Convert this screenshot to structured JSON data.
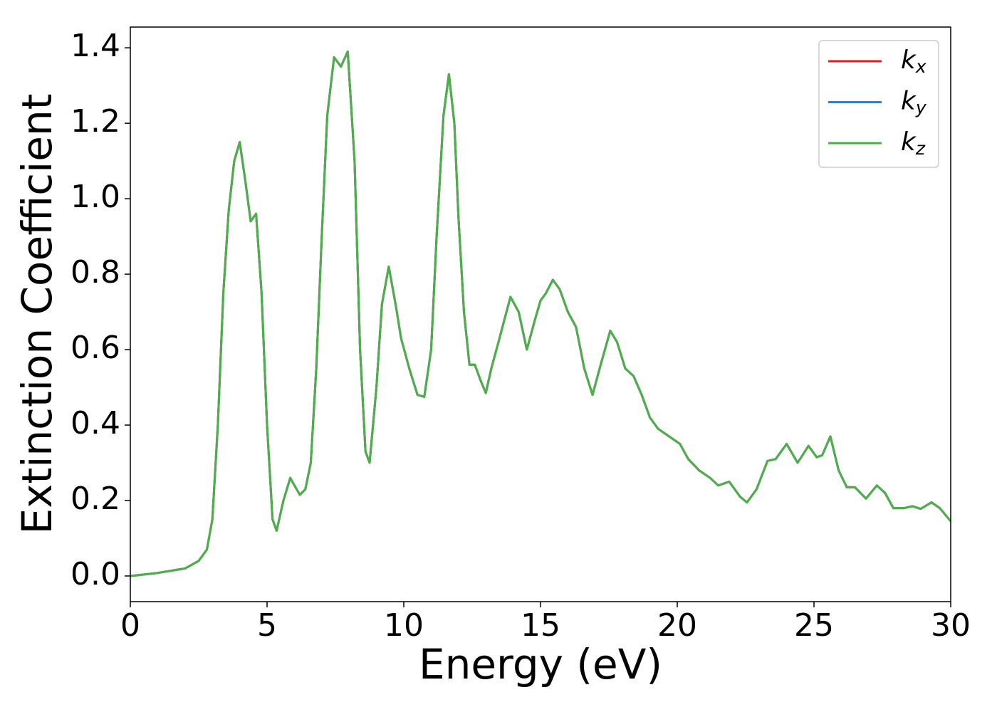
{
  "chart_data": {
    "type": "line",
    "xlabel": "Energy (eV)",
    "ylabel": "Extinction Coefficient",
    "x": [
      0,
      1,
      2,
      2.5,
      2.8,
      3.0,
      3.2,
      3.4,
      3.6,
      3.8,
      4.0,
      4.2,
      4.4,
      4.6,
      4.8,
      5.0,
      5.2,
      5.35,
      5.6,
      5.85,
      6.0,
      6.2,
      6.4,
      6.6,
      6.8,
      7.0,
      7.2,
      7.45,
      7.7,
      7.95,
      8.2,
      8.4,
      8.6,
      8.75,
      9.0,
      9.2,
      9.45,
      9.7,
      9.9,
      10.2,
      10.5,
      10.75,
      11.0,
      11.2,
      11.45,
      11.65,
      11.85,
      12.0,
      12.2,
      12.4,
      12.6,
      12.8,
      13.0,
      13.2,
      13.5,
      13.9,
      14.2,
      14.5,
      14.8,
      15.0,
      15.2,
      15.45,
      15.7,
      16.0,
      16.3,
      16.6,
      16.9,
      17.2,
      17.55,
      17.8,
      18.1,
      18.4,
      18.7,
      19.0,
      19.3,
      19.7,
      20.1,
      20.4,
      20.8,
      21.2,
      21.5,
      21.9,
      22.3,
      22.55,
      22.9,
      23.3,
      23.6,
      24.0,
      24.4,
      24.8,
      25.1,
      25.3,
      25.6,
      25.9,
      26.2,
      26.5,
      26.9,
      27.3,
      27.6,
      27.9,
      28.3,
      28.6,
      28.9,
      29.3,
      29.6,
      30
    ],
    "series": [
      {
        "name": "kx",
        "color": "#e41a1c",
        "values": [
          0,
          0.008,
          0.02,
          0.04,
          0.07,
          0.15,
          0.4,
          0.75,
          0.97,
          1.1,
          1.15,
          1.05,
          0.94,
          0.96,
          0.75,
          0.4,
          0.15,
          0.12,
          0.2,
          0.26,
          0.24,
          0.215,
          0.23,
          0.3,
          0.55,
          0.9,
          1.22,
          1.375,
          1.35,
          1.39,
          1.1,
          0.6,
          0.33,
          0.3,
          0.5,
          0.72,
          0.82,
          0.72,
          0.63,
          0.55,
          0.48,
          0.475,
          0.6,
          0.9,
          1.22,
          1.33,
          1.2,
          0.95,
          0.7,
          0.56,
          0.56,
          0.52,
          0.485,
          0.55,
          0.63,
          0.74,
          0.7,
          0.6,
          0.68,
          0.73,
          0.75,
          0.785,
          0.76,
          0.7,
          0.66,
          0.55,
          0.48,
          0.56,
          0.65,
          0.62,
          0.55,
          0.53,
          0.48,
          0.42,
          0.39,
          0.37,
          0.35,
          0.31,
          0.28,
          0.26,
          0.24,
          0.25,
          0.21,
          0.195,
          0.23,
          0.305,
          0.31,
          0.35,
          0.3,
          0.345,
          0.315,
          0.32,
          0.37,
          0.28,
          0.235,
          0.235,
          0.205,
          0.24,
          0.22,
          0.18,
          0.18,
          0.185,
          0.178,
          0.195,
          0.18,
          0.145
        ]
      },
      {
        "name": "ky",
        "color": "#377eb8",
        "values": [
          0,
          0.008,
          0.02,
          0.04,
          0.07,
          0.15,
          0.4,
          0.75,
          0.97,
          1.1,
          1.15,
          1.05,
          0.94,
          0.96,
          0.75,
          0.4,
          0.15,
          0.12,
          0.2,
          0.26,
          0.24,
          0.215,
          0.23,
          0.3,
          0.55,
          0.9,
          1.22,
          1.375,
          1.35,
          1.39,
          1.1,
          0.6,
          0.33,
          0.3,
          0.5,
          0.72,
          0.82,
          0.72,
          0.63,
          0.55,
          0.48,
          0.475,
          0.6,
          0.9,
          1.22,
          1.33,
          1.2,
          0.95,
          0.7,
          0.56,
          0.56,
          0.52,
          0.485,
          0.55,
          0.63,
          0.74,
          0.7,
          0.6,
          0.68,
          0.73,
          0.75,
          0.785,
          0.76,
          0.7,
          0.66,
          0.55,
          0.48,
          0.56,
          0.65,
          0.62,
          0.55,
          0.53,
          0.48,
          0.42,
          0.39,
          0.37,
          0.35,
          0.31,
          0.28,
          0.26,
          0.24,
          0.25,
          0.21,
          0.195,
          0.23,
          0.305,
          0.31,
          0.35,
          0.3,
          0.345,
          0.315,
          0.32,
          0.37,
          0.28,
          0.235,
          0.235,
          0.205,
          0.24,
          0.22,
          0.18,
          0.18,
          0.185,
          0.178,
          0.195,
          0.18,
          0.145
        ]
      },
      {
        "name": "kz",
        "color": "#4daf4a",
        "values": [
          0,
          0.008,
          0.02,
          0.04,
          0.07,
          0.15,
          0.4,
          0.75,
          0.97,
          1.1,
          1.15,
          1.05,
          0.94,
          0.96,
          0.75,
          0.4,
          0.15,
          0.12,
          0.2,
          0.26,
          0.24,
          0.215,
          0.23,
          0.3,
          0.55,
          0.9,
          1.22,
          1.375,
          1.35,
          1.39,
          1.1,
          0.6,
          0.33,
          0.3,
          0.5,
          0.72,
          0.82,
          0.72,
          0.63,
          0.55,
          0.48,
          0.475,
          0.6,
          0.9,
          1.22,
          1.33,
          1.2,
          0.95,
          0.7,
          0.56,
          0.56,
          0.52,
          0.485,
          0.55,
          0.63,
          0.74,
          0.7,
          0.6,
          0.68,
          0.73,
          0.75,
          0.785,
          0.76,
          0.7,
          0.66,
          0.55,
          0.48,
          0.56,
          0.65,
          0.62,
          0.55,
          0.53,
          0.48,
          0.42,
          0.39,
          0.37,
          0.35,
          0.31,
          0.28,
          0.26,
          0.24,
          0.25,
          0.21,
          0.195,
          0.23,
          0.305,
          0.31,
          0.35,
          0.3,
          0.345,
          0.315,
          0.32,
          0.37,
          0.28,
          0.235,
          0.235,
          0.205,
          0.24,
          0.22,
          0.18,
          0.18,
          0.185,
          0.178,
          0.195,
          0.18,
          0.145
        ]
      }
    ],
    "xlim": [
      0,
      30
    ],
    "xticks": [
      0,
      5,
      10,
      15,
      20,
      25,
      30
    ],
    "ylim": [
      -0.068,
      1.455
    ],
    "yticks": [
      {
        "value": 0,
        "label": "0.0"
      },
      0.2,
      0.4,
      0.6,
      0.8,
      {
        "value": 1,
        "label": "1.0"
      },
      1.2,
      1.4
    ],
    "grid": false,
    "legend": "upper right"
  }
}
